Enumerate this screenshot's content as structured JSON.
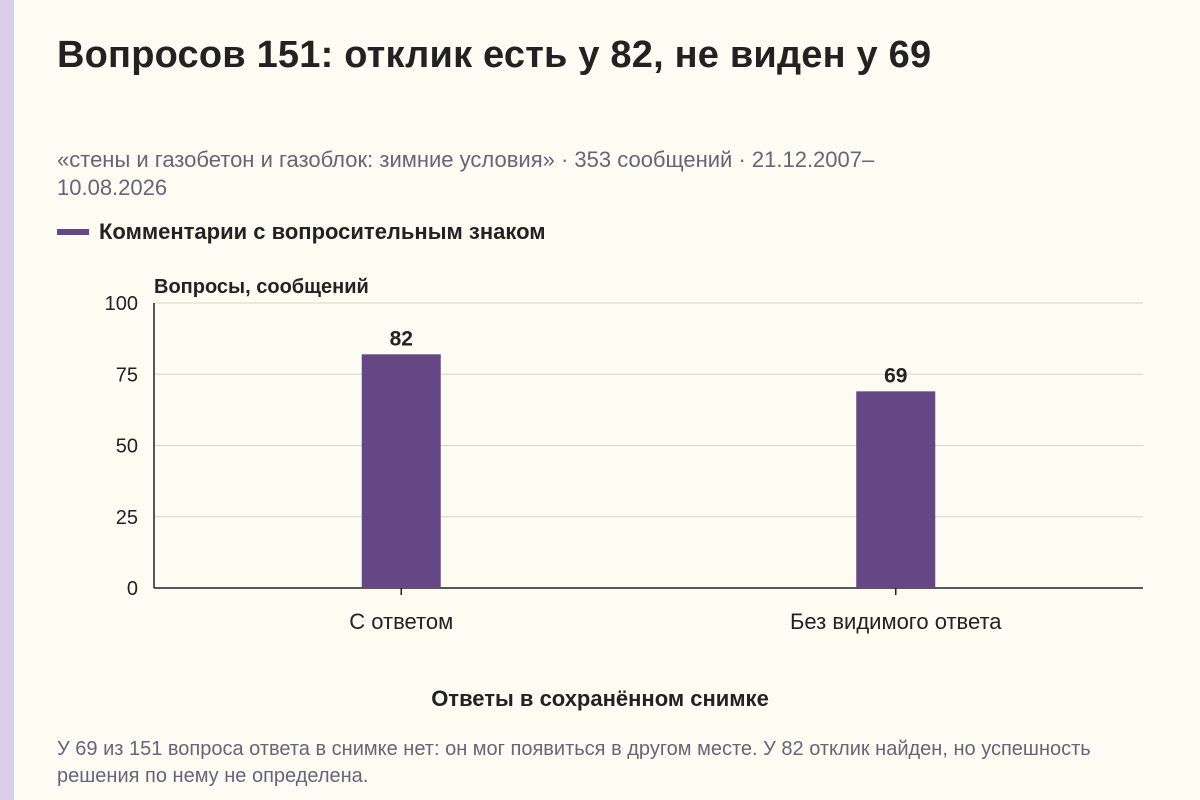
{
  "title": "Вопросов 151: отклик есть у 82, не виден у 69",
  "subtitle": "«стены и газобетон и газоблок: зимние условия» · 353 сообщений · 21.12.2007–10.08.2026",
  "footnote": "У 69 из 151 вопроса ответа в снимке нет: он мог появиться в другом месте. У 82 отклик найден, но успешность решения по нему не определена.",
  "colors": {
    "bar": "#664785",
    "grid": "#d6d3cc",
    "axis": "#222222",
    "accent_stripe": "#d9cdea"
  },
  "chart_data": {
    "type": "bar",
    "categories": [
      "С ответом",
      "Без видимого ответа"
    ],
    "series": [
      {
        "name": "Комментарии с вопросительным знаком",
        "values": [
          82,
          69
        ]
      }
    ],
    "data_labels": [
      "82",
      "69"
    ],
    "xlabel": "Ответы в сохранённом снимке",
    "ylabel": "Вопросы, сообщений",
    "ylim": [
      0,
      100
    ],
    "yticks": [
      0,
      25,
      50,
      75,
      100
    ],
    "grid": true,
    "legend_position": "top-left"
  }
}
